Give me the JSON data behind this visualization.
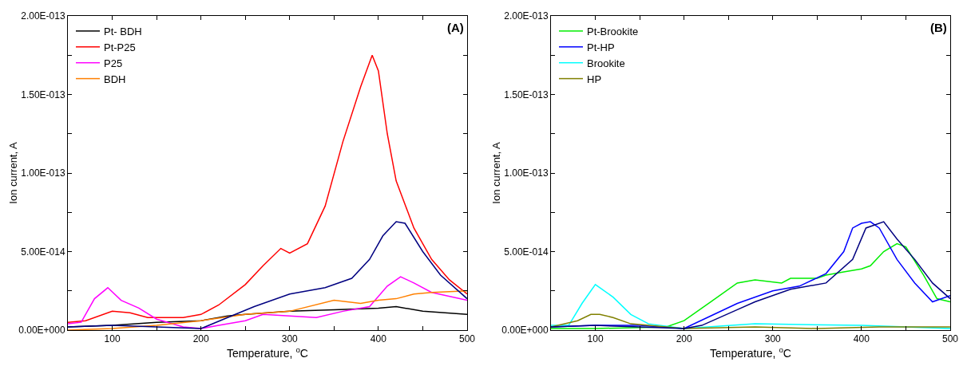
{
  "chart_data": [
    {
      "type": "line",
      "xlabel": "Temperature, $^{o}$C",
      "ylabel": "Ion current, A",
      "annotations": [
        "(A)"
      ],
      "legend": "top left",
      "grid": false,
      "marker": "none",
      "line_style": "solid",
      "xlim": [
        50,
        500
      ],
      "xticks": [
        {
          "value": 50,
          "label": null
        },
        100,
        {
          "value": 150,
          "label": null
        },
        200,
        {
          "value": 250,
          "label": null
        },
        300,
        {
          "value": 350,
          "label": null
        },
        400,
        {
          "value": 450,
          "label": null
        },
        500
      ],
      "ylim": [
        0,
        2e-13
      ],
      "yticks": [
        {
          "value": 0,
          "label": "0.00E+000"
        },
        {
          "value": 2.5e-14,
          "label": null
        },
        {
          "value": 5e-14,
          "label": "5.00E-014"
        },
        {
          "value": 7.5e-14,
          "label": null
        },
        {
          "value": 1e-13,
          "label": "1.00E-013"
        },
        {
          "value": 1.25e-13,
          "label": null
        },
        {
          "value": 1.5e-13,
          "label": "1.50E-013"
        },
        {
          "value": 1.75e-13,
          "label": null
        },
        {
          "value": 2e-13,
          "label": "2.00E-013"
        }
      ],
      "series": [
        {
          "name": "Pt- BDH",
          "color": "#000000",
          "x": [
            50,
            100,
            150,
            200,
            230,
            250,
            300,
            350,
            400,
            420,
            450,
            500
          ],
          "values": [
            2e-15,
            3e-15,
            5e-15,
            6e-15,
            9e-15,
            1e-14,
            1.2e-14,
            1.3e-14,
            1.4e-14,
            1.5e-14,
            1.2e-14,
            1e-14
          ]
        },
        {
          "name": "Pt-P25",
          "color": "#ff0000",
          "x": [
            50,
            70,
            100,
            120,
            140,
            180,
            200,
            220,
            250,
            270,
            290,
            300,
            320,
            340,
            360,
            380,
            393,
            400,
            410,
            420,
            440,
            460,
            480,
            500
          ],
          "values": [
            5e-15,
            6e-15,
            1.2e-14,
            1.1e-14,
            8e-15,
            8e-15,
            1e-14,
            1.6e-14,
            2.9e-14,
            4.1e-14,
            5.2e-14,
            4.9e-14,
            5.5e-14,
            7.9e-14,
            1.2e-13,
            1.55e-13,
            1.75e-13,
            1.65e-13,
            1.25e-13,
            9.5e-14,
            6.5e-14,
            4.5e-14,
            3.2e-14,
            2.3e-14
          ]
        },
        {
          "name": "P25",
          "color": "#ff00ff",
          "x": [
            50,
            65,
            80,
            95,
            110,
            130,
            150,
            180,
            200,
            220,
            250,
            270,
            300,
            330,
            360,
            390,
            410,
            425,
            440,
            460,
            500
          ],
          "values": [
            4e-15,
            5e-15,
            2e-14,
            2.7e-14,
            1.9e-14,
            1.4e-14,
            7e-15,
            2e-15,
            1e-15,
            3e-15,
            6e-15,
            1e-14,
            9e-15,
            8e-15,
            1.2e-14,
            1.5e-14,
            2.8e-14,
            3.4e-14,
            3e-14,
            2.4e-14,
            1.9e-14
          ]
        },
        {
          "name": "BDH",
          "color": "#ff8000",
          "x": [
            50,
            100,
            150,
            200,
            250,
            300,
            350,
            380,
            400,
            420,
            440,
            460,
            500
          ],
          "values": [
            0,
            1e-15,
            3e-15,
            6e-15,
            1e-14,
            1.2e-14,
            1.9e-14,
            1.7e-14,
            1.9e-14,
            2e-14,
            2.3e-14,
            2.4e-14,
            2.5e-14
          ]
        },
        {
          "color": "#000080",
          "x": [
            50,
            100,
            150,
            200,
            230,
            260,
            300,
            340,
            370,
            390,
            405,
            420,
            430,
            450,
            470,
            500
          ],
          "values": [
            2e-15,
            3e-15,
            2e-15,
            1e-15,
            8e-15,
            1.5e-14,
            2.3e-14,
            2.7e-14,
            3.3e-14,
            4.5e-14,
            6e-14,
            6.9e-14,
            6.8e-14,
            5e-14,
            3.5e-14,
            2e-14
          ]
        }
      ]
    },
    {
      "type": "line",
      "xlabel": "Temperature, $^{o}$C",
      "ylabel": "Ion current, A",
      "annotations": [
        "(B)"
      ],
      "legend": "top left",
      "grid": false,
      "marker": "none",
      "line_style": "solid",
      "xlim": [
        50,
        500
      ],
      "xticks": [
        {
          "value": 50,
          "label": null
        },
        100,
        {
          "value": 150,
          "label": null
        },
        200,
        {
          "value": 250,
          "label": null
        },
        300,
        {
          "value": 350,
          "label": null
        },
        400,
        {
          "value": 450,
          "label": null
        },
        500
      ],
      "ylim": [
        0,
        2e-13
      ],
      "yticks": [
        {
          "value": 0,
          "label": "0.00E+000"
        },
        {
          "value": 2.5e-14,
          "label": null
        },
        {
          "value": 5e-14,
          "label": "5.00E-014"
        },
        {
          "value": 7.5e-14,
          "label": null
        },
        {
          "value": 1e-13,
          "label": "1.00E-013"
        },
        {
          "value": 1.25e-13,
          "label": null
        },
        {
          "value": 1.5e-13,
          "label": "1.50E-013"
        },
        {
          "value": 1.75e-13,
          "label": null
        },
        {
          "value": 2e-13,
          "label": "2.00E-013"
        }
      ],
      "series": [
        {
          "name": "Pt-Brookite",
          "color": "#00ee00",
          "x": [
            50,
            100,
            180,
            200,
            230,
            260,
            280,
            310,
            320,
            350,
            360,
            380,
            400,
            410,
            425,
            440,
            450,
            470,
            485,
            500
          ],
          "values": [
            1e-15,
            1e-15,
            2e-15,
            6e-15,
            1.8e-14,
            3e-14,
            3.2e-14,
            3e-14,
            3.3e-14,
            3.3e-14,
            3.5e-14,
            3.7e-14,
            3.9e-14,
            4.1e-14,
            5e-14,
            5.5e-14,
            5.3e-14,
            3.5e-14,
            2e-14,
            1.8e-14
          ]
        },
        {
          "name": "Pt-HP",
          "color": "#0000ff",
          "x": [
            50,
            100,
            150,
            200,
            230,
            260,
            300,
            330,
            360,
            380,
            390,
            400,
            410,
            420,
            440,
            460,
            480,
            500
          ],
          "values": [
            2e-15,
            3e-15,
            3e-15,
            1e-15,
            9e-15,
            1.7e-14,
            2.5e-14,
            2.8e-14,
            3.6e-14,
            5e-14,
            6.5e-14,
            6.8e-14,
            6.9e-14,
            6.5e-14,
            4.5e-14,
            3e-14,
            1.8e-14,
            2.2e-14
          ]
        },
        {
          "name": "Brookite",
          "color": "#00ffff",
          "x": [
            50,
            70,
            85,
            100,
            120,
            140,
            160,
            200,
            280,
            400,
            500
          ],
          "values": [
            3e-15,
            3e-15,
            1.7e-14,
            2.9e-14,
            2.1e-14,
            1e-14,
            4e-15,
            1e-15,
            4e-15,
            3e-15,
            1e-15
          ]
        },
        {
          "name": "HP",
          "color": "#808000",
          "x": [
            50,
            80,
            95,
            105,
            120,
            140,
            200,
            280,
            350,
            420,
            500
          ],
          "values": [
            2e-15,
            6e-15,
            1e-14,
            1e-14,
            8e-15,
            4e-15,
            1e-15,
            2e-15,
            1e-15,
            2e-15,
            2e-15
          ]
        },
        {
          "color": "#000080",
          "x": [
            50,
            100,
            150,
            200,
            220,
            260,
            280,
            320,
            360,
            390,
            405,
            425,
            440,
            460,
            480,
            500
          ],
          "values": [
            2e-15,
            3e-15,
            2e-15,
            1e-15,
            3e-15,
            1.3e-14,
            1.8e-14,
            2.6e-14,
            3e-14,
            4.5e-14,
            6.5e-14,
            6.9e-14,
            5.8e-14,
            4.5e-14,
            3e-14,
            2e-14
          ]
        }
      ]
    }
  ]
}
